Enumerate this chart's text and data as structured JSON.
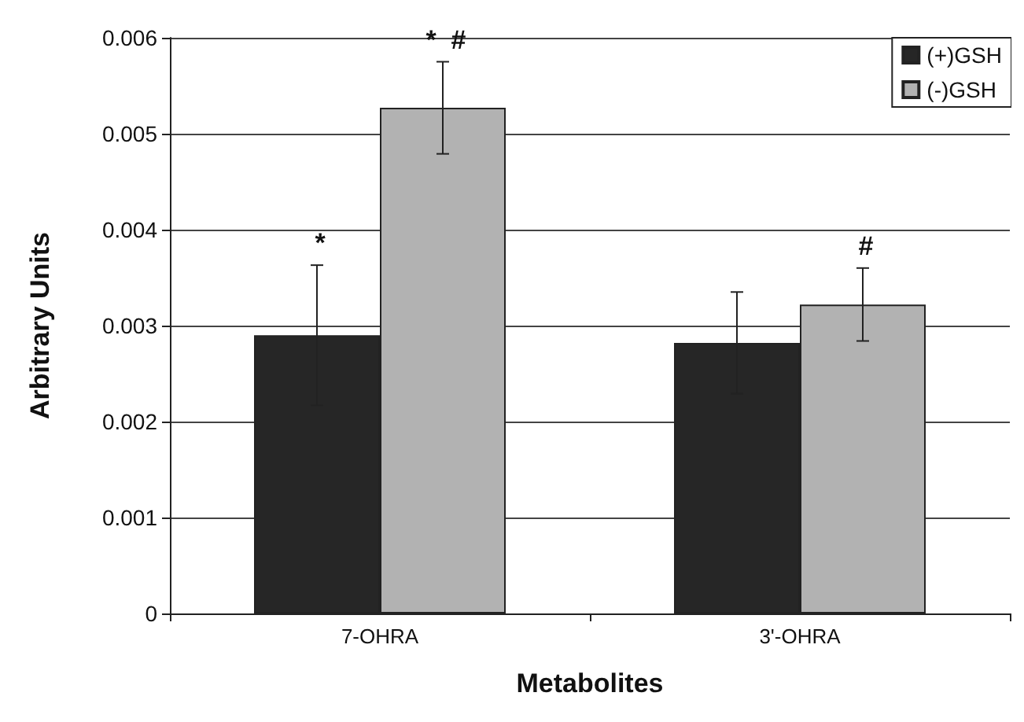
{
  "chart_data": {
    "type": "bar",
    "xlabel": "Metabolites",
    "ylabel": "Arbitrary Units",
    "categories": [
      "7-OHRA",
      "3'-OHRA"
    ],
    "series": [
      {
        "name": "(+)GSH",
        "color": "#262626",
        "values": [
          0.0029,
          0.00282
        ],
        "errors": [
          0.00073,
          0.00053
        ],
        "value_labels": [
          "*",
          null
        ]
      },
      {
        "name": "(-)GSH",
        "color": "#b2b2b2",
        "values": [
          0.00527,
          0.00322
        ],
        "errors": [
          0.00048,
          0.00038
        ],
        "value_labels": [
          "*  #",
          "#"
        ]
      }
    ],
    "ylim": [
      0,
      0.006
    ],
    "yticks": [
      0,
      0.001,
      0.002,
      0.003,
      0.004,
      0.005,
      0.006
    ],
    "grid": "y",
    "legend": "top right"
  }
}
